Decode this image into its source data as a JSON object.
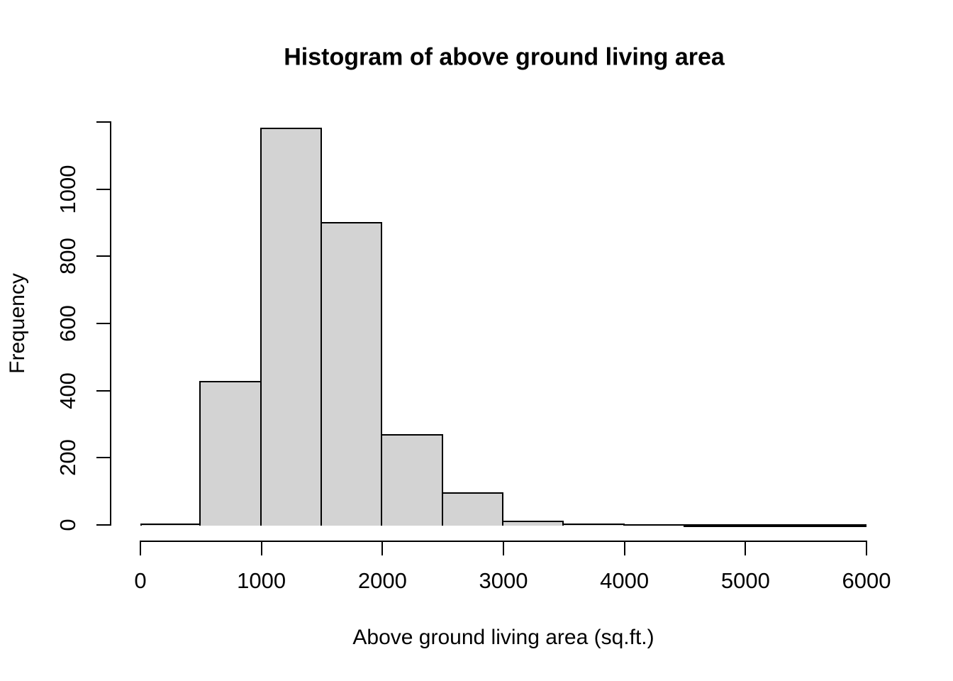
{
  "chart_data": {
    "type": "histogram",
    "title": "Histogram of above ground living area",
    "xlabel": "Above ground living area (sq.ft.)",
    "ylabel": "Frequency",
    "bin_width": 500,
    "bin_edges": [
      0,
      500,
      1000,
      1500,
      2000,
      2500,
      3000,
      3500,
      4000,
      4500,
      5000,
      5500,
      6000
    ],
    "counts": [
      7,
      431,
      1186,
      905,
      272,
      100,
      15,
      7,
      4,
      1,
      1,
      1
    ],
    "x_ticks": {
      "values": [
        0,
        1000,
        2000,
        3000,
        4000,
        5000,
        6000
      ],
      "labels": [
        "0",
        "1000",
        "2000",
        "3000",
        "4000",
        "5000",
        "6000"
      ]
    },
    "y_ticks": {
      "values": [
        0,
        200,
        400,
        600,
        800,
        1000,
        1200
      ],
      "labels": [
        "0",
        "200",
        "400",
        "600",
        "800",
        "1000",
        ""
      ]
    },
    "xlim": [
      0,
      6000
    ],
    "ylim": [
      0,
      1200
    ],
    "grid": false,
    "bar_fill_color": "#d3d3d3",
    "bar_border_color": "#000000",
    "axis_color": "#000000",
    "text_color": "#000000",
    "background_color": "#ffffff"
  }
}
